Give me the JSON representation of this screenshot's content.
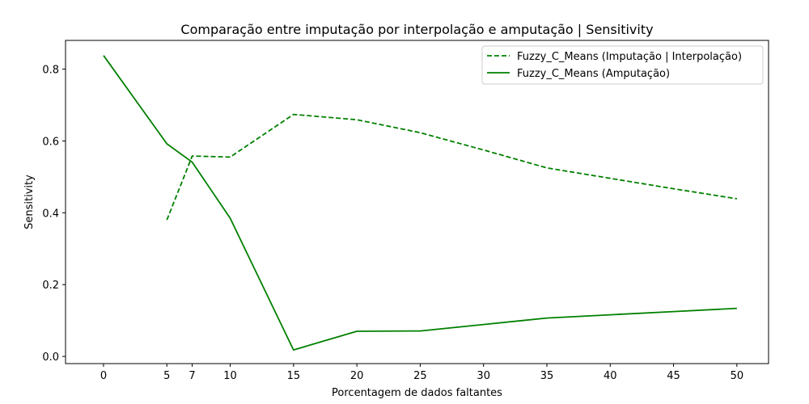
{
  "chart_data": {
    "type": "line",
    "title": "Comparação entre imputação por interpolação e amputação | Sensitivity",
    "xlabel": "Porcentagem de dados faltantes",
    "ylabel": "Sensitivity",
    "xlim": [
      -3,
      52.5
    ],
    "ylim": [
      -0.02,
      0.88
    ],
    "xticks": [
      0,
      5,
      7,
      10,
      15,
      20,
      25,
      30,
      35,
      40,
      45,
      50
    ],
    "yticks": [
      0.0,
      0.2,
      0.4,
      0.6,
      0.8
    ],
    "ytick_labels": [
      "0.0",
      "0.2",
      "0.4",
      "0.6",
      "0.8"
    ],
    "grid": false,
    "legend_position": "top-right",
    "series": [
      {
        "name": "Fuzzy_C_Means (Imputação | Interpolação)",
        "style": "dashed",
        "color": "#008000",
        "x": [
          5,
          7,
          10,
          15,
          20,
          25,
          30,
          35,
          40,
          45,
          50
        ],
        "y": [
          0.38,
          0.558,
          0.555,
          0.674,
          0.659,
          0.623,
          0.575,
          0.525,
          0.496,
          0.467,
          0.439
        ]
      },
      {
        "name": "Fuzzy_C_Means (Amputação)",
        "style": "solid",
        "color": "#008000",
        "x": [
          0,
          5,
          7,
          10,
          15,
          20,
          25,
          30,
          35,
          40,
          45,
          50
        ],
        "y": [
          0.838,
          0.592,
          0.541,
          0.385,
          0.018,
          0.07,
          0.071,
          0.089,
          0.107,
          0.116,
          0.125,
          0.134
        ]
      }
    ]
  }
}
